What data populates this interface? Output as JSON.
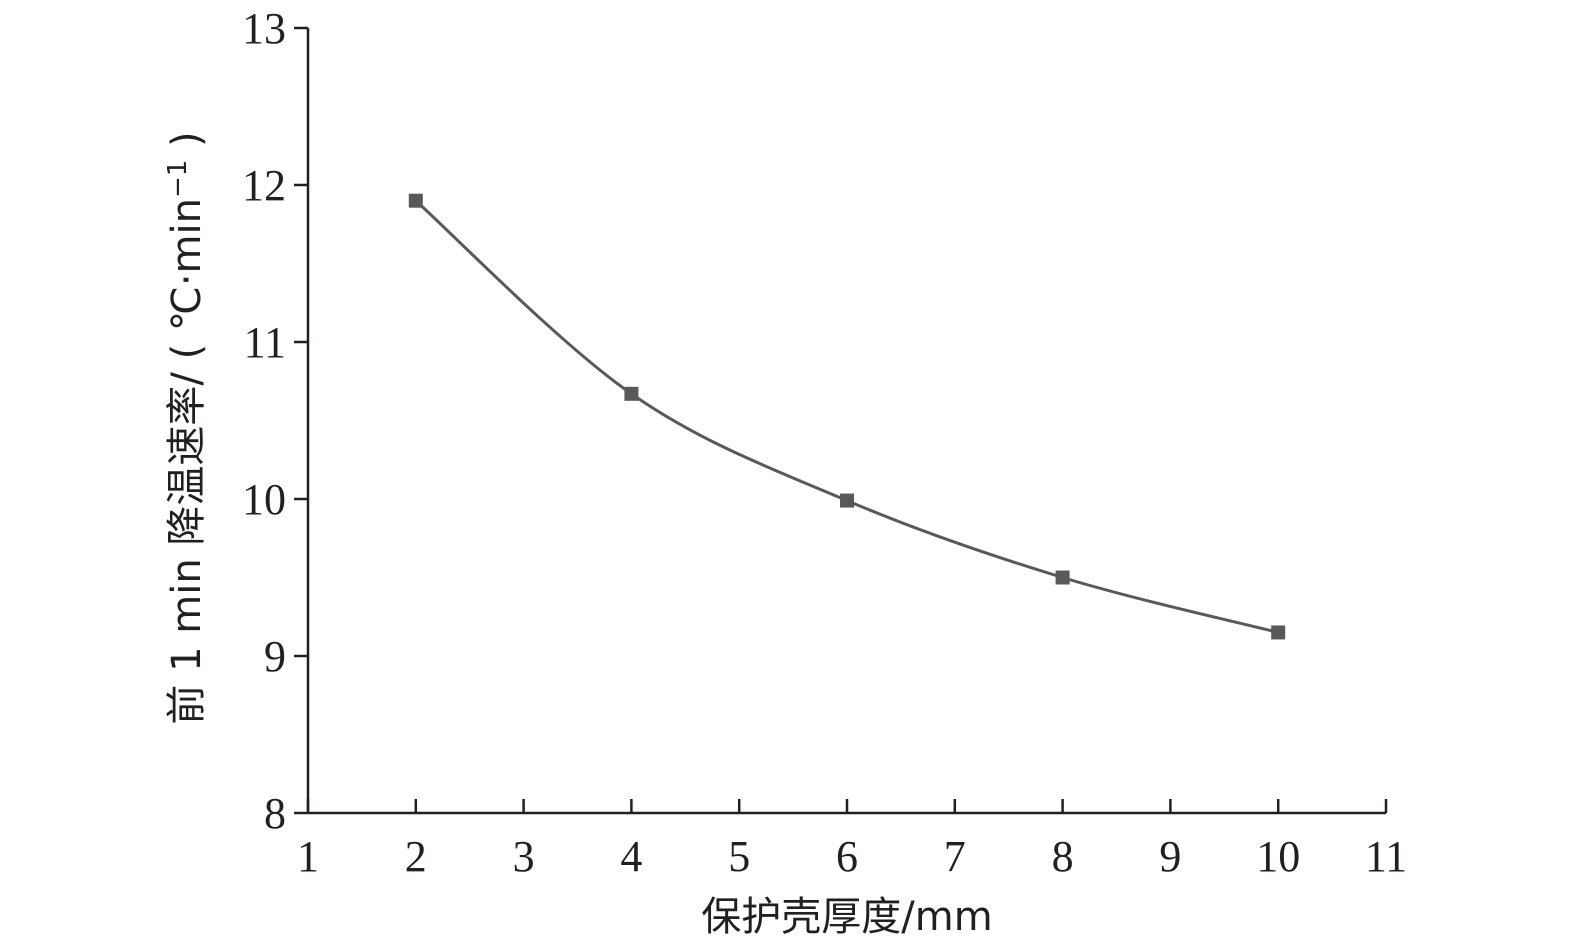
{
  "chart_data": {
    "type": "line",
    "xlabel": "保护壳厚度/mm",
    "ylabel": "前 1 min 降温速率/ ( ℃·min",
    "ylabel_superscript": "−1",
    "ylabel_close": " )",
    "xlim": [
      1,
      11
    ],
    "ylim": [
      8,
      13
    ],
    "xticks": [
      1,
      2,
      3,
      4,
      5,
      6,
      7,
      8,
      9,
      10,
      11
    ],
    "yticks": [
      8,
      9,
      10,
      11,
      12,
      13
    ],
    "grid": false,
    "legend": "none",
    "smooth": true,
    "marker": "square",
    "color": "#595959",
    "x": [
      2,
      4,
      6,
      8,
      10
    ],
    "y": [
      11.9,
      10.67,
      9.99,
      9.5,
      9.15
    ]
  }
}
